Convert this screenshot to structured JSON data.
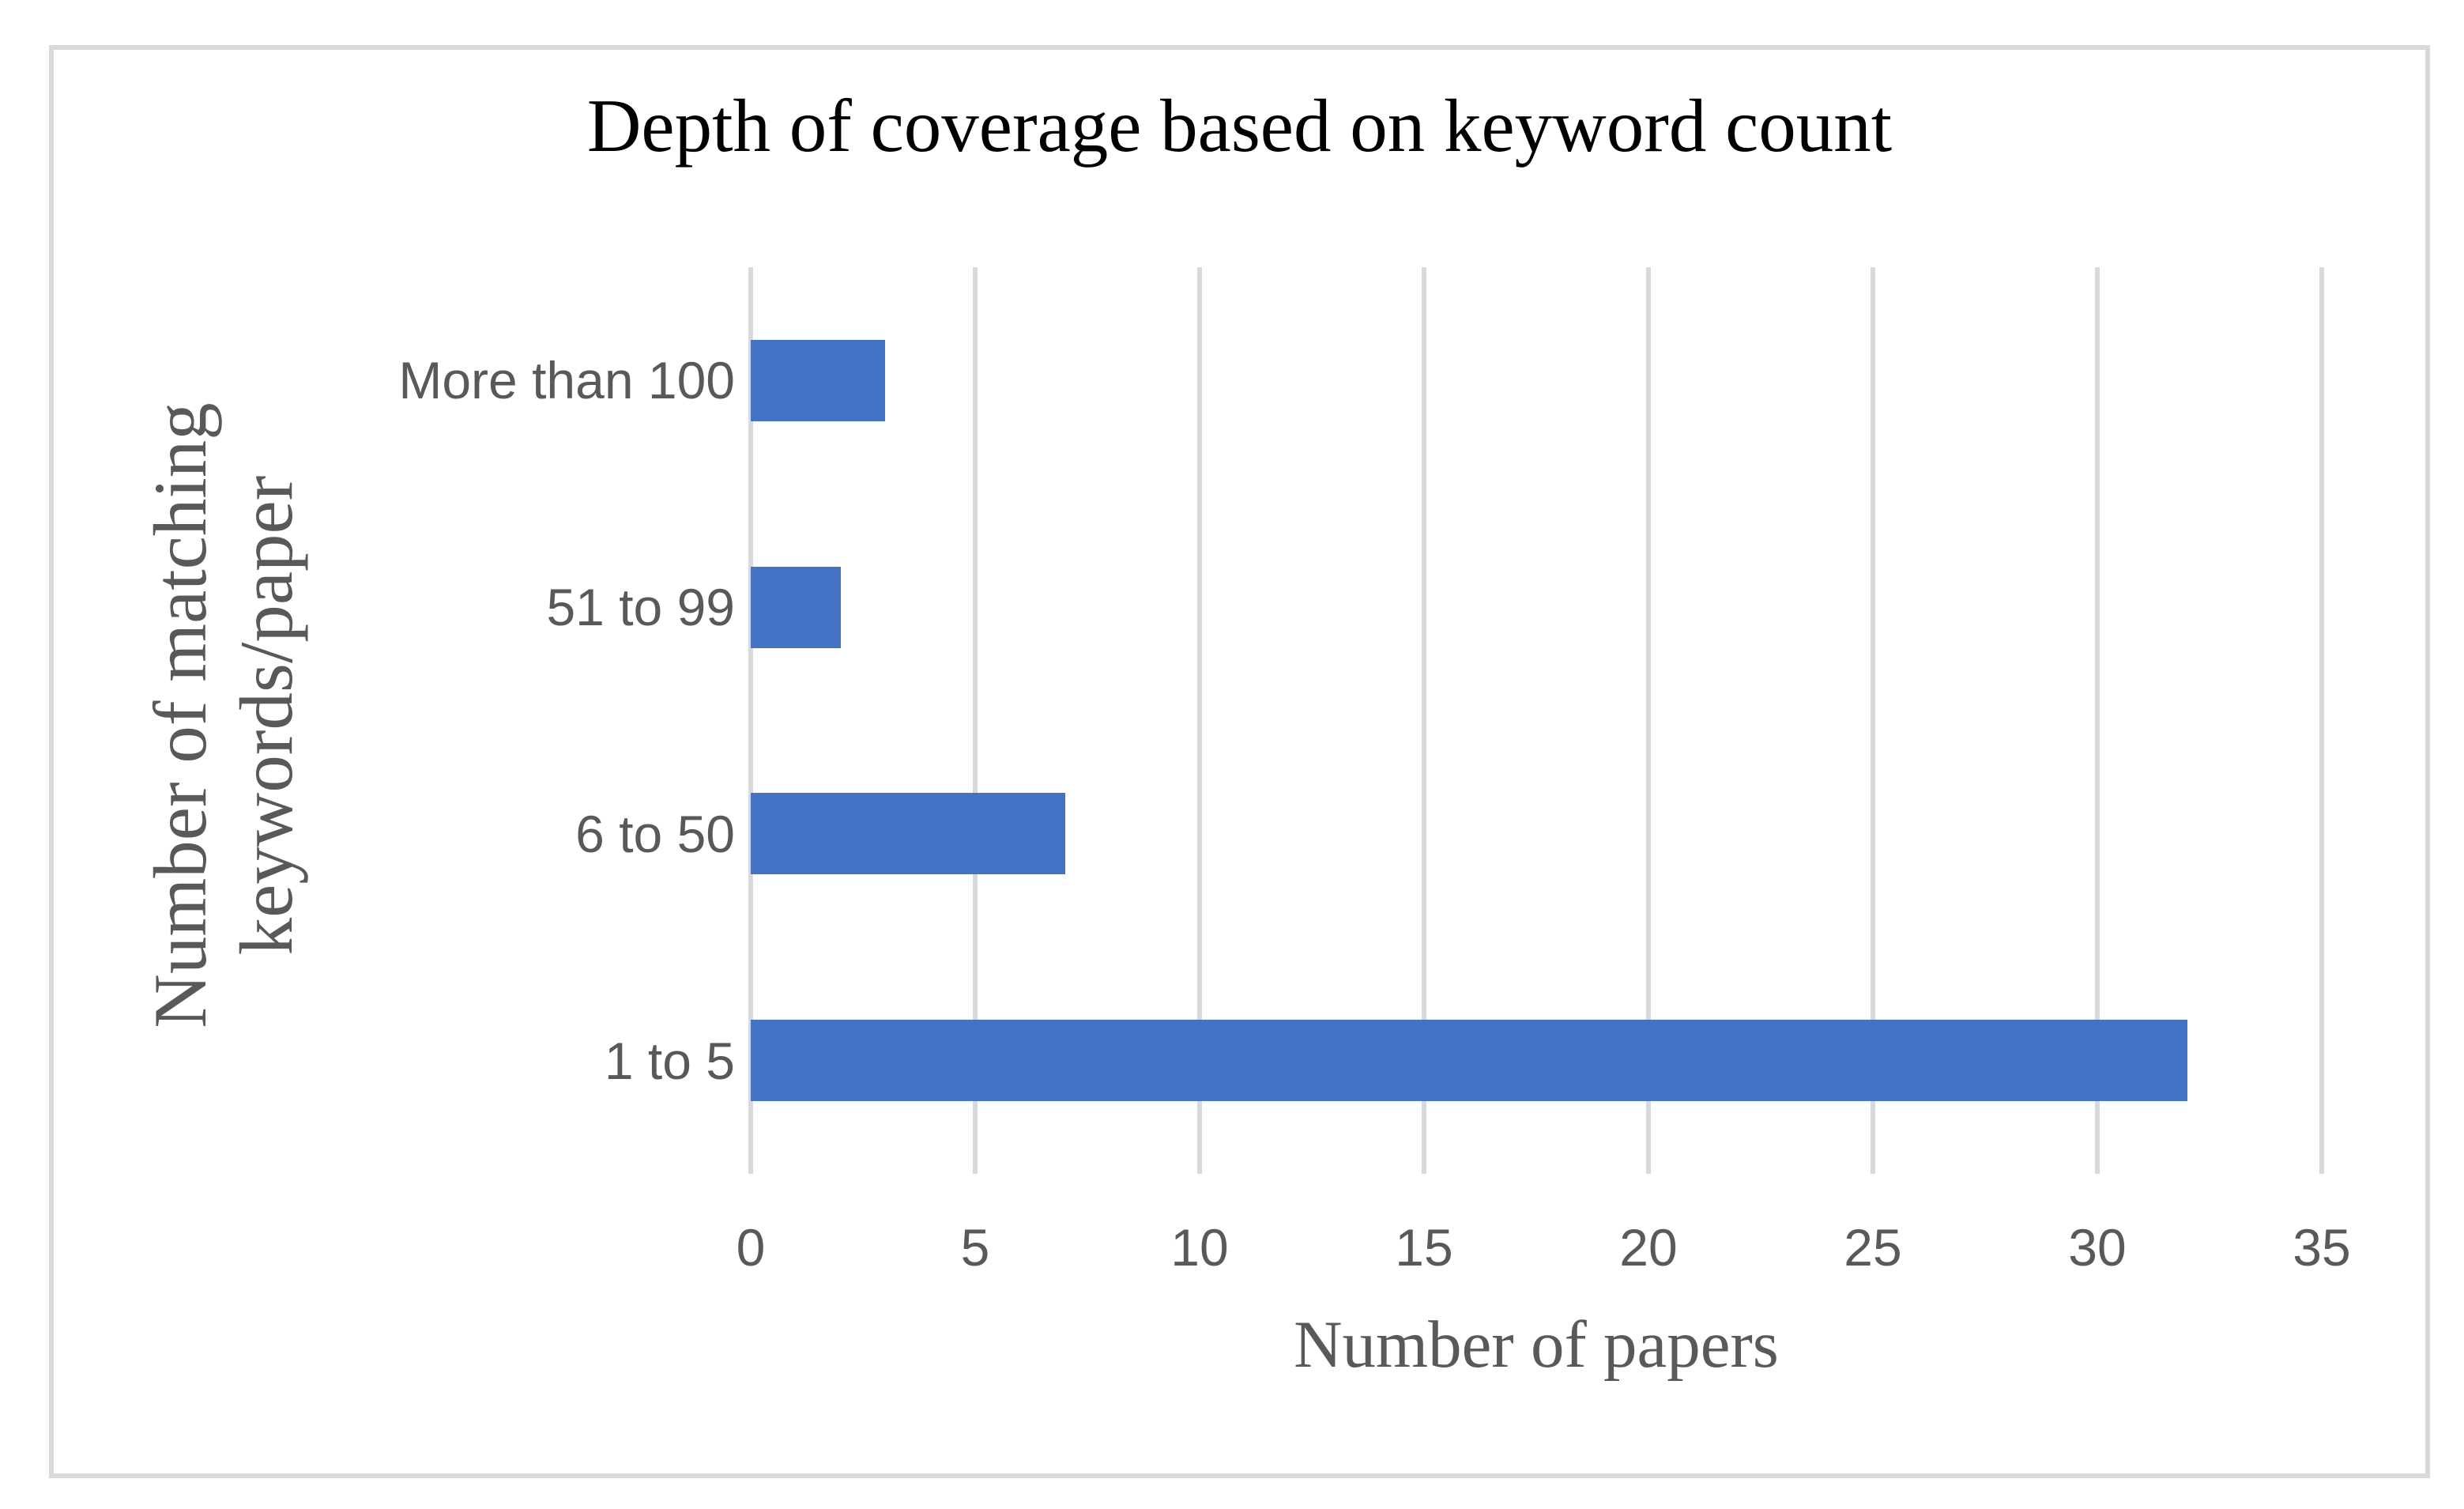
{
  "figure": {
    "background": "#FFFFFF",
    "border_color": "#D9D9D9"
  },
  "chart_data": {
    "type": "bar",
    "orientation": "horizontal",
    "title": "Depth of coverage based on keyword count",
    "categories": [
      "More than 100",
      "51 to 99",
      "6 to 50",
      "1 to 5"
    ],
    "values": [
      3,
      2,
      7,
      32
    ],
    "xlabel": "Number of papers",
    "ylabel": "Number of matching keywords/paper",
    "ylabel_lines": [
      "Number of matching",
      "keywords/paper"
    ],
    "xlim": [
      0,
      35
    ],
    "xticks": [
      0,
      5,
      10,
      15,
      20,
      25,
      30,
      35
    ],
    "grid": "vertical gridlines at each x tick",
    "legend": "none",
    "colors": {
      "bar": "#4472C4",
      "gridline": "#D9D9D9",
      "tick_label": "#595959",
      "category_label": "#595959",
      "axis_title": "#595959",
      "title": "#000000"
    }
  }
}
